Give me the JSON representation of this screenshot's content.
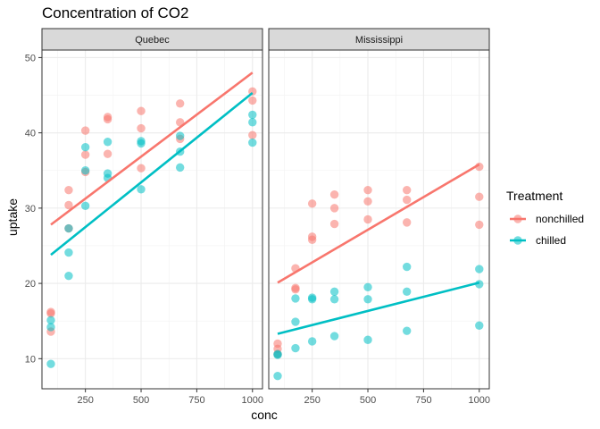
{
  "chart_data": {
    "type": "scatter",
    "title": "Concentration of CO2",
    "xlabel": "conc",
    "ylabel": "uptake",
    "xlim": [
      55,
      1045
    ],
    "ylim": [
      6,
      51
    ],
    "xticks": [
      250,
      500,
      750,
      1000
    ],
    "yticks": [
      10,
      20,
      30,
      40,
      50
    ],
    "grid": true,
    "legend": {
      "title": "Treatment",
      "position": "right"
    },
    "series": [
      {
        "name": "nonchilled",
        "color": "#F8766D"
      },
      {
        "name": "chilled",
        "color": "#00BFC4"
      }
    ],
    "panels": [
      {
        "label": "Quebec",
        "points": {
          "nonchilled": [
            [
              95,
              16.0
            ],
            [
              95,
              13.6
            ],
            [
              95,
              16.2
            ],
            [
              175,
              30.4
            ],
            [
              175,
              27.3
            ],
            [
              175,
              32.4
            ],
            [
              250,
              34.8
            ],
            [
              250,
              37.1
            ],
            [
              250,
              40.3
            ],
            [
              350,
              37.2
            ],
            [
              350,
              41.8
            ],
            [
              350,
              42.1
            ],
            [
              500,
              35.3
            ],
            [
              500,
              40.6
            ],
            [
              500,
              42.9
            ],
            [
              675,
              39.2
            ],
            [
              675,
              41.4
            ],
            [
              675,
              43.9
            ],
            [
              1000,
              39.7
            ],
            [
              1000,
              44.3
            ],
            [
              1000,
              45.5
            ]
          ],
          "chilled": [
            [
              95,
              14.2
            ],
            [
              95,
              9.3
            ],
            [
              95,
              15.1
            ],
            [
              175,
              24.1
            ],
            [
              175,
              27.3
            ],
            [
              175,
              21.0
            ],
            [
              250,
              30.3
            ],
            [
              250,
              35.0
            ],
            [
              250,
              38.1
            ],
            [
              350,
              34.6
            ],
            [
              350,
              38.8
            ],
            [
              350,
              34.0
            ],
            [
              500,
              32.5
            ],
            [
              500,
              38.6
            ],
            [
              500,
              38.9
            ],
            [
              675,
              35.4
            ],
            [
              675,
              37.5
            ],
            [
              675,
              39.6
            ],
            [
              1000,
              38.7
            ],
            [
              1000,
              42.4
            ],
            [
              1000,
              41.4
            ]
          ]
        },
        "fits": {
          "nonchilled": [
            [
              95,
              27.8
            ],
            [
              1000,
              48.0
            ]
          ],
          "chilled": [
            [
              95,
              23.8
            ],
            [
              1000,
              45.3
            ]
          ]
        }
      },
      {
        "label": "Mississippi",
        "points": {
          "nonchilled": [
            [
              95,
              10.6
            ],
            [
              95,
              12.0
            ],
            [
              95,
              11.3
            ],
            [
              175,
              19.2
            ],
            [
              175,
              22.0
            ],
            [
              175,
              19.4
            ],
            [
              250,
              26.2
            ],
            [
              250,
              30.6
            ],
            [
              250,
              25.8
            ],
            [
              350,
              30.0
            ],
            [
              350,
              31.8
            ],
            [
              350,
              27.9
            ],
            [
              500,
              30.9
            ],
            [
              500,
              32.4
            ],
            [
              500,
              28.5
            ],
            [
              675,
              32.4
            ],
            [
              675,
              31.1
            ],
            [
              675,
              28.1
            ],
            [
              1000,
              35.5
            ],
            [
              1000,
              31.5
            ],
            [
              1000,
              27.8
            ]
          ],
          "chilled": [
            [
              95,
              10.5
            ],
            [
              95,
              7.7
            ],
            [
              95,
              10.6
            ],
            [
              175,
              14.9
            ],
            [
              175,
              11.4
            ],
            [
              175,
              18.0
            ],
            [
              250,
              18.1
            ],
            [
              250,
              12.3
            ],
            [
              250,
              17.9
            ],
            [
              350,
              18.9
            ],
            [
              350,
              13.0
            ],
            [
              350,
              17.9
            ],
            [
              500,
              19.5
            ],
            [
              500,
              12.5
            ],
            [
              500,
              17.9
            ],
            [
              675,
              22.2
            ],
            [
              675,
              13.7
            ],
            [
              675,
              18.9
            ],
            [
              1000,
              21.9
            ],
            [
              1000,
              14.4
            ],
            [
              1000,
              19.9
            ]
          ]
        },
        "fits": {
          "nonchilled": [
            [
              95,
              20.1
            ],
            [
              1000,
              35.8
            ]
          ],
          "chilled": [
            [
              95,
              13.3
            ],
            [
              1000,
              20.1
            ]
          ]
        }
      }
    ]
  }
}
